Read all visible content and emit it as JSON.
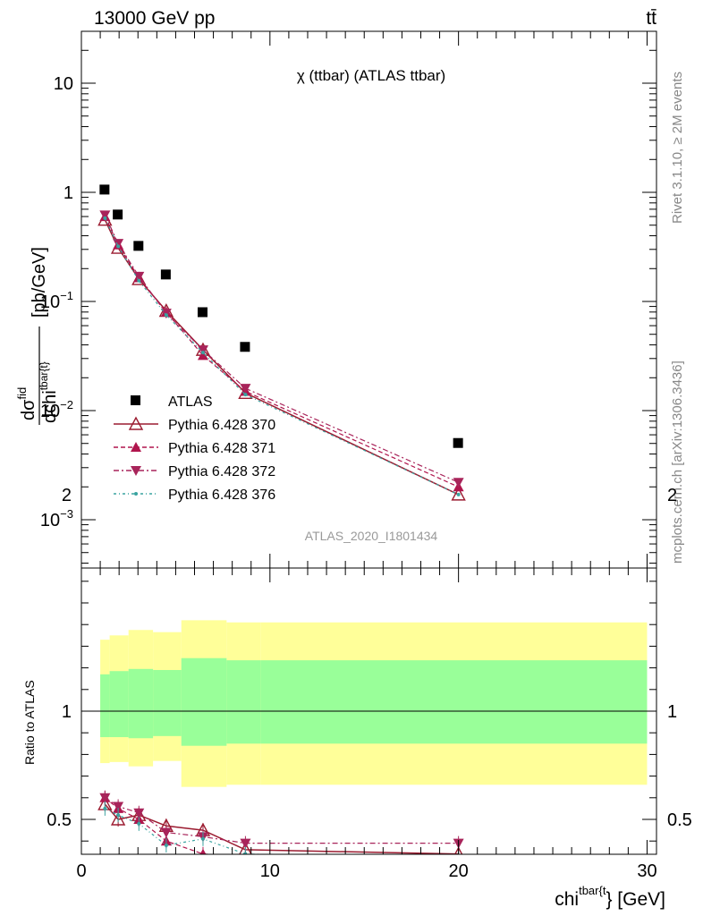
{
  "header": {
    "energy_label": "13000 GeV pp",
    "process_label": "tt̄"
  },
  "side": {
    "rivet": "Rivet 3.1.10, ≥ 2M events",
    "mcplots": "mcplots.cern.ch [arXiv:1306.3436]"
  },
  "upper": {
    "title": "χ (ttbar) (ATLAS ttbar)",
    "analysis_id": "ATLAS_2020_I1801434",
    "y_axis_label": "dσ^fid / dchi^tbar{t} [pb/GeV]",
    "y_ticks": [
      "10",
      "1",
      "10−1",
      "10−2",
      "10−3"
    ]
  },
  "lower": {
    "y_axis_label": "Ratio to ATLAS",
    "y_ticks": [
      "2",
      "1",
      "0.5"
    ],
    "x_axis_label": "chi^tbar{t} [GeV]",
    "x_ticks": [
      "0",
      "10",
      "20",
      "30"
    ]
  },
  "chart_data": {
    "type": "scatter",
    "x_range": [
      0,
      30.5
    ],
    "y_log": true,
    "ratio_range": [
      0.35,
      2.3
    ],
    "legend_position": "left",
    "x": [
      1.25,
      1.95,
      3.05,
      4.5,
      6.45,
      8.7,
      20
    ],
    "bin_edges": [
      1,
      1.5,
      2.5,
      3.8,
      5.3,
      7.7,
      9.5,
      30
    ],
    "series": [
      {
        "name": "ATLAS",
        "color": "#000000",
        "marker": "square",
        "values": [
          1.05,
          0.62,
          0.32,
          0.175,
          0.079,
          0.038,
          0.005
        ],
        "ratio": [
          1,
          1,
          1,
          1,
          1,
          1,
          1
        ]
      },
      {
        "name": "Pythia 6.428 370",
        "color": "#9b1b30",
        "marker": "triangle-open",
        "dash": "",
        "values": [
          0.56,
          0.31,
          0.16,
          0.082,
          0.036,
          0.0145,
          0.0017
        ],
        "ratio": [
          0.57,
          0.5,
          0.52,
          0.47,
          0.45,
          0.36,
          0.34
        ]
      },
      {
        "name": "Pythia 6.428 371",
        "color": "#b0154d",
        "marker": "triangle-up",
        "dash": "5,3",
        "values": [
          0.6,
          0.33,
          0.165,
          0.08,
          0.032,
          0.015,
          0.002
        ],
        "ratio": [
          0.6,
          0.55,
          0.5,
          0.4,
          0.34,
          0.33,
          0.3
        ]
      },
      {
        "name": "Pythia 6.428 372",
        "color": "#a8245a",
        "marker": "triangle-down",
        "dash": "6,3,2,3",
        "values": [
          0.62,
          0.34,
          0.17,
          0.078,
          0.036,
          0.016,
          0.0022
        ],
        "ratio": [
          0.6,
          0.56,
          0.53,
          0.44,
          0.42,
          0.39,
          0.39
        ]
      },
      {
        "name": "Pythia 6.428 376",
        "color": "#3aa3a0",
        "marker": "dot",
        "dash": "3,3,1,3",
        "values": [
          0.58,
          0.32,
          0.155,
          0.075,
          0.034,
          0.014,
          0.0017
        ],
        "ratio": [
          0.55,
          0.52,
          0.48,
          0.38,
          0.41,
          0.34,
          0.32
        ]
      }
    ],
    "uncertainty_bands": {
      "green_low": [
        0.88,
        0.88,
        0.875,
        0.885,
        0.84,
        0.85,
        0.85
      ],
      "green_high": [
        1.17,
        1.185,
        1.195,
        1.19,
        1.245,
        1.235,
        1.235
      ],
      "yellow_low": [
        0.76,
        0.765,
        0.745,
        0.77,
        0.65,
        0.66,
        0.66
      ],
      "yellow_high": [
        1.33,
        1.35,
        1.375,
        1.365,
        1.42,
        1.41,
        1.41
      ]
    }
  }
}
